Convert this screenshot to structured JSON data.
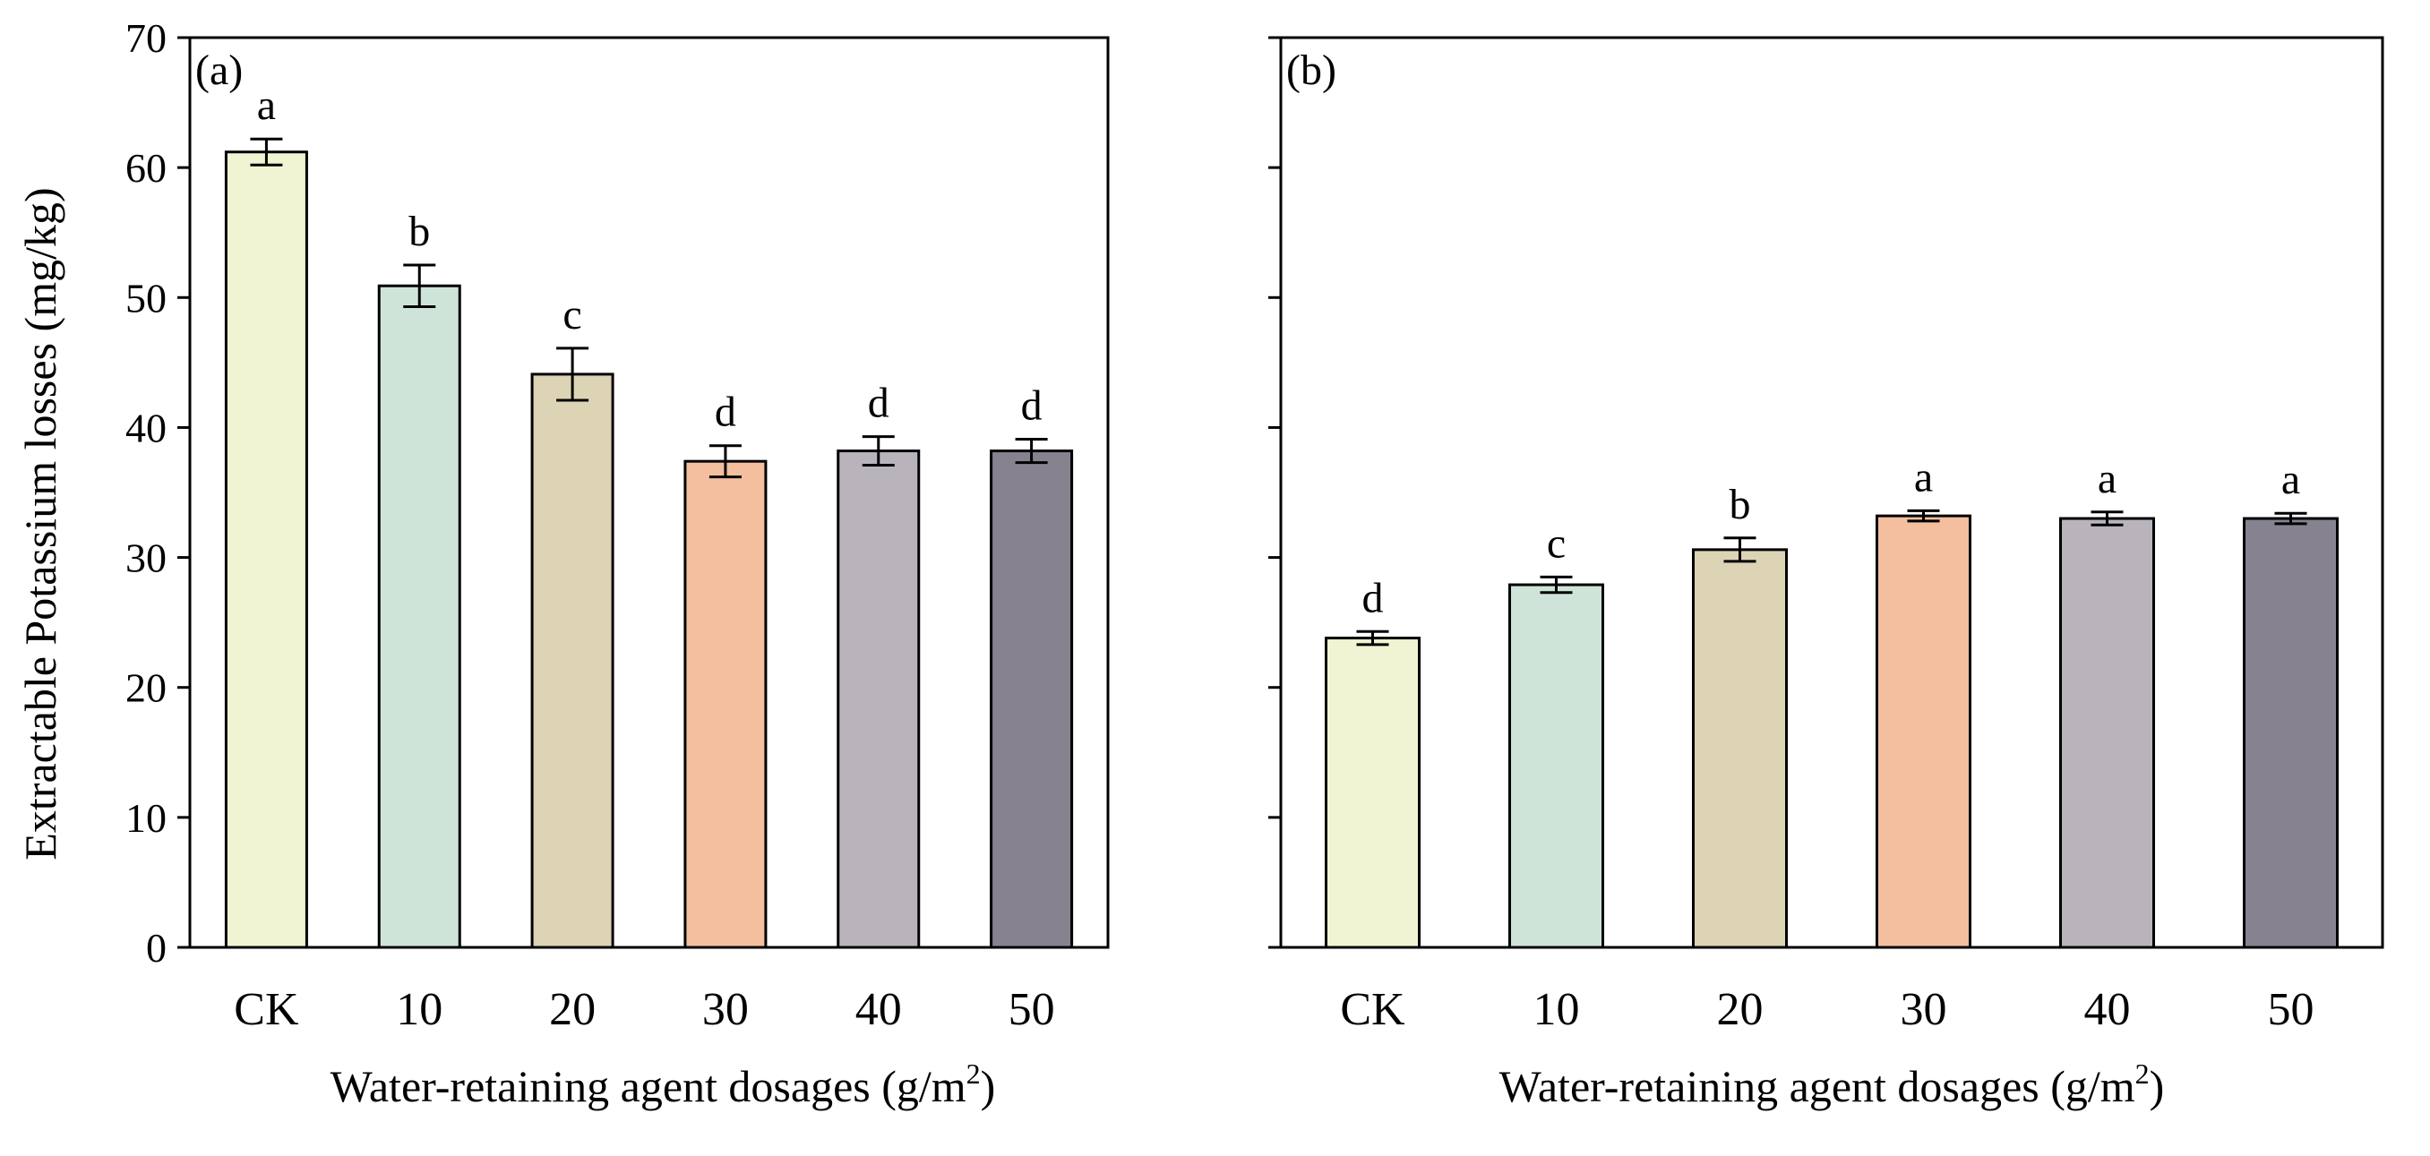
{
  "figure": {
    "ylabel": "Extractable Potassium losses (mg/kg)",
    "colors": {
      "frame": "#000000",
      "bars": [
        "#f1f4d2",
        "#cfe4d9",
        "#ddd4b6",
        "#f3bf9f",
        "#b9b4bc",
        "#878290"
      ]
    }
  },
  "chart_data": [
    {
      "type": "bar",
      "panel_label": "(a)",
      "title": "",
      "xlabel_main": "Water-retaining agent dosages (g/m",
      "xlabel_sup": "2",
      "xlabel_end": ")",
      "ylabel": "Extractable Potassium losses (mg/kg)",
      "ylim": [
        0,
        70
      ],
      "yticks": [
        0,
        10,
        20,
        30,
        40,
        50,
        60,
        70
      ],
      "show_tick_labels": true,
      "categories": [
        "CK",
        "10",
        "20",
        "30",
        "40",
        "50"
      ],
      "values": [
        61.2,
        50.9,
        44.1,
        37.4,
        38.2,
        38.2
      ],
      "errors": [
        1.0,
        1.6,
        2.0,
        1.2,
        1.1,
        0.9
      ],
      "letters": [
        "a",
        "b",
        "c",
        "d",
        "d",
        "d"
      ]
    },
    {
      "type": "bar",
      "panel_label": "(b)",
      "title": "",
      "xlabel_main": "Water-retaining agent dosages (g/m",
      "xlabel_sup": "2",
      "xlabel_end": ")",
      "ylabel": "",
      "ylim": [
        0,
        70
      ],
      "yticks": [
        0,
        10,
        20,
        30,
        40,
        50,
        60,
        70
      ],
      "show_tick_labels": false,
      "categories": [
        "CK",
        "10",
        "20",
        "30",
        "40",
        "50"
      ],
      "values": [
        23.8,
        27.9,
        30.6,
        33.2,
        33.0,
        33.0
      ],
      "errors": [
        0.5,
        0.6,
        0.9,
        0.4,
        0.5,
        0.4
      ],
      "letters": [
        "d",
        "c",
        "b",
        "a",
        "a",
        "a"
      ]
    }
  ]
}
